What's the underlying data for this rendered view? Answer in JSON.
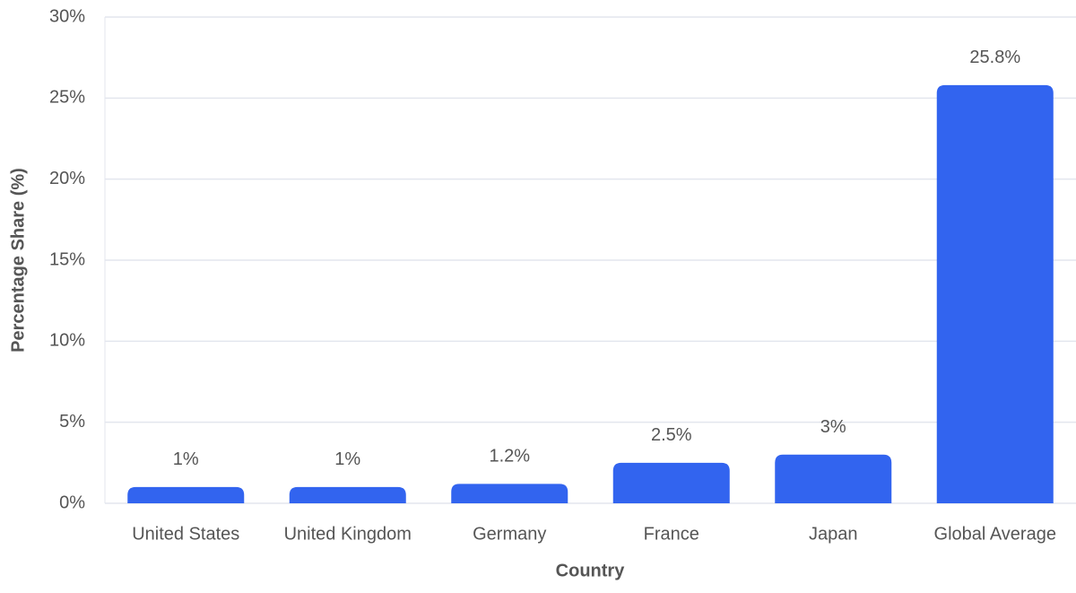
{
  "chart_data": {
    "type": "bar",
    "x_label": "Country",
    "y_label": "Percentage Share (%)",
    "categories": [
      "United States",
      "United Kingdom",
      "Germany",
      "France",
      "Japan",
      "Global Average"
    ],
    "values": [
      1,
      1,
      1.2,
      2.5,
      3,
      25.8
    ],
    "value_labels": [
      "1%",
      "1%",
      "1.2%",
      "2.5%",
      "3%",
      "25.8%"
    ],
    "color": "#3264ef",
    "ylim": [
      0,
      30
    ],
    "yticks": [
      {
        "value": 0,
        "label": "0%"
      },
      {
        "value": 5,
        "label": "5%"
      },
      {
        "value": 10,
        "label": "10%"
      },
      {
        "value": 15,
        "label": "15%"
      },
      {
        "value": 20,
        "label": "20%"
      },
      {
        "value": 25,
        "label": "25%"
      },
      {
        "value": 30,
        "label": "30%"
      }
    ],
    "grid": true
  }
}
